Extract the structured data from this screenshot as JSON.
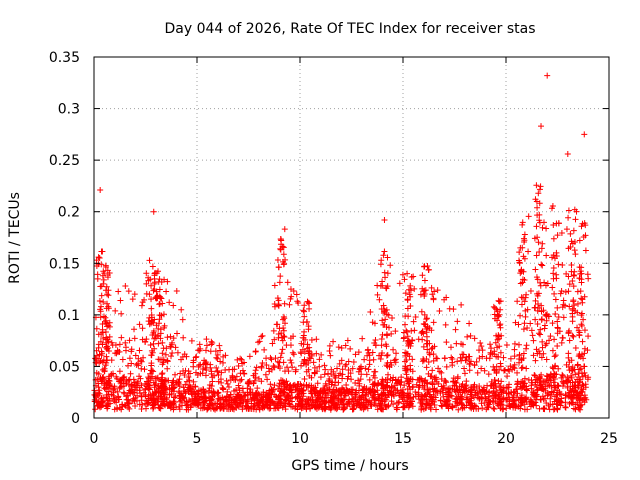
{
  "chart_data": {
    "type": "scatter",
    "title": "Day 044 of 2026, Rate Of TEC Index for receiver stas",
    "xlabel": "GPS time / hours",
    "ylabel": "ROTI / TECUs",
    "xlim": [
      0,
      25
    ],
    "ylim": [
      0,
      0.35
    ],
    "x_ticks": [
      "0",
      "5",
      "10",
      "15",
      "20",
      "25"
    ],
    "y_ticks": [
      "0",
      "0.05",
      "0.1",
      "0.15",
      "0.2",
      "0.25",
      "0.3",
      "0.35"
    ],
    "grid": true,
    "marker": "+",
    "color": "#ff0000",
    "notable_points": [
      {
        "x": 0.3,
        "y": 0.221
      },
      {
        "x": 2.9,
        "y": 0.2
      },
      {
        "x": 14.1,
        "y": 0.192
      },
      {
        "x": 21.7,
        "y": 0.283
      },
      {
        "x": 22.0,
        "y": 0.332
      },
      {
        "x": 23.0,
        "y": 0.256
      },
      {
        "x": 23.8,
        "y": 0.275
      }
    ],
    "envelope": [
      {
        "x": 0.0,
        "peak": 0.07,
        "base": 0.025
      },
      {
        "x": 0.3,
        "peak": 0.16,
        "base": 0.04
      },
      {
        "x": 1.0,
        "peak": 0.12,
        "base": 0.035
      },
      {
        "x": 1.6,
        "peak": 0.12,
        "base": 0.03
      },
      {
        "x": 2.2,
        "peak": 0.12,
        "base": 0.03
      },
      {
        "x": 2.7,
        "peak": 0.15,
        "base": 0.035
      },
      {
        "x": 3.3,
        "peak": 0.13,
        "base": 0.03
      },
      {
        "x": 4.0,
        "peak": 0.12,
        "base": 0.03
      },
      {
        "x": 4.5,
        "peak": 0.08,
        "base": 0.025
      },
      {
        "x": 5.5,
        "peak": 0.08,
        "base": 0.02
      },
      {
        "x": 6.5,
        "peak": 0.05,
        "base": 0.015
      },
      {
        "x": 7.5,
        "peak": 0.05,
        "base": 0.015
      },
      {
        "x": 8.5,
        "peak": 0.09,
        "base": 0.02
      },
      {
        "x": 9.1,
        "peak": 0.175,
        "base": 0.03
      },
      {
        "x": 9.7,
        "peak": 0.12,
        "base": 0.025
      },
      {
        "x": 10.4,
        "peak": 0.1,
        "base": 0.025
      },
      {
        "x": 11.0,
        "peak": 0.06,
        "base": 0.02
      },
      {
        "x": 12.0,
        "peak": 0.07,
        "base": 0.02
      },
      {
        "x": 13.0,
        "peak": 0.07,
        "base": 0.02
      },
      {
        "x": 14.1,
        "peak": 0.16,
        "base": 0.03
      },
      {
        "x": 14.8,
        "peak": 0.14,
        "base": 0.03
      },
      {
        "x": 15.5,
        "peak": 0.13,
        "base": 0.03
      },
      {
        "x": 16.2,
        "peak": 0.14,
        "base": 0.03
      },
      {
        "x": 17.0,
        "peak": 0.11,
        "base": 0.03
      },
      {
        "x": 18.0,
        "peak": 0.1,
        "base": 0.025
      },
      {
        "x": 19.0,
        "peak": 0.08,
        "base": 0.025
      },
      {
        "x": 19.6,
        "peak": 0.11,
        "base": 0.025
      },
      {
        "x": 20.2,
        "peak": 0.06,
        "base": 0.02
      },
      {
        "x": 20.8,
        "peak": 0.18,
        "base": 0.03
      },
      {
        "x": 21.5,
        "peak": 0.22,
        "base": 0.035
      },
      {
        "x": 22.3,
        "peak": 0.2,
        "base": 0.035
      },
      {
        "x": 23.0,
        "peak": 0.19,
        "base": 0.04
      },
      {
        "x": 23.6,
        "peak": 0.2,
        "base": 0.04
      },
      {
        "x": 24.0,
        "peak": 0.14,
        "base": 0.035
      }
    ]
  }
}
